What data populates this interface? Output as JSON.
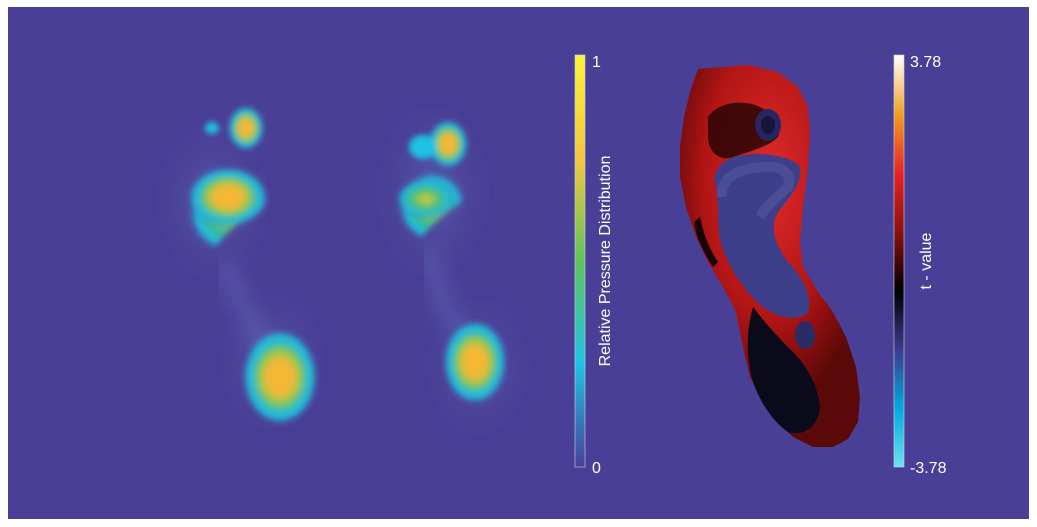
{
  "figure": {
    "background_color": "#4a3f97",
    "panels": [
      {
        "id": "foot-map-1",
        "kind": "pressure-heatmap"
      },
      {
        "id": "foot-map-2",
        "kind": "pressure-heatmap"
      },
      {
        "id": "foot-map-3",
        "kind": "t-value-map"
      }
    ],
    "colorbar_pressure": {
      "max_label": "1",
      "min_label": "0",
      "axis_label": "Relative Pressure Distribution",
      "colors": [
        "#4a3f97",
        "#1ec3e4",
        "#5ec45a",
        "#f3c73b",
        "#fbf23a"
      ]
    },
    "colorbar_t": {
      "max_label": "3.78",
      "min_label": "-3.78",
      "axis_label": "t - value",
      "colors": [
        "#6ee2ee",
        "#00a8e0",
        "#3b3a8c",
        "#000000",
        "#8b1010",
        "#e62424",
        "#f0a020",
        "#ffffff"
      ]
    }
  }
}
